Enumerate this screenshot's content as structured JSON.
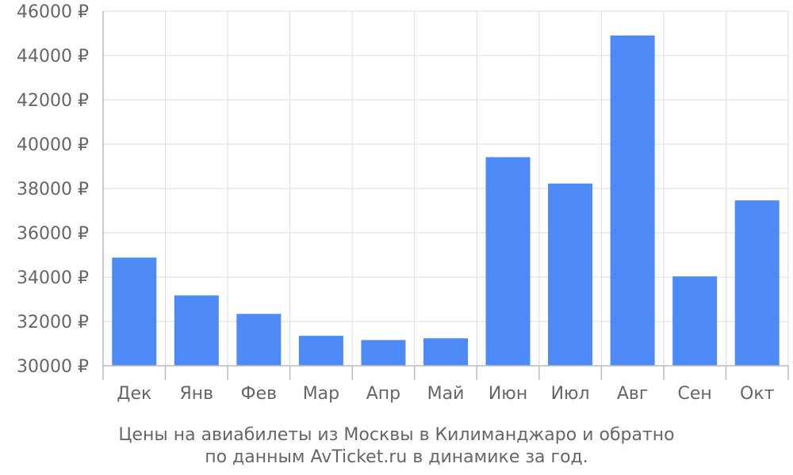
{
  "chart_data": {
    "type": "bar",
    "title_lines": [
      "Цены на авиабилеты из Москвы в Килиманджаро и обратно",
      "по данным AvTicket.ru в динамике за год."
    ],
    "categories": [
      "Дек",
      "Янв",
      "Фев",
      "Мар",
      "Апр",
      "Май",
      "Июн",
      "Июл",
      "Авг",
      "Сен",
      "Окт"
    ],
    "values": [
      34880,
      33170,
      32340,
      31350,
      31160,
      31240,
      39410,
      38220,
      44900,
      34030,
      37460
    ],
    "ylim": [
      30000,
      46000
    ],
    "yticks": [
      {
        "value": 30000,
        "label": "30000 ₽"
      },
      {
        "value": 32000,
        "label": "32000 ₽"
      },
      {
        "value": 34000,
        "label": "34000 ₽"
      },
      {
        "value": 36000,
        "label": "36000 ₽"
      },
      {
        "value": 38000,
        "label": "38000 ₽"
      },
      {
        "value": 40000,
        "label": "40000 ₽"
      },
      {
        "value": 42000,
        "label": "42000 ₽"
      },
      {
        "value": 44000,
        "label": "44000 ₽"
      },
      {
        "value": 46000,
        "label": "46000 ₽"
      }
    ],
    "grid": true,
    "legend": "none",
    "bar_color": "#4d8af8",
    "grid_color": "#dddddd",
    "axis_color": "#bbbbbb"
  }
}
